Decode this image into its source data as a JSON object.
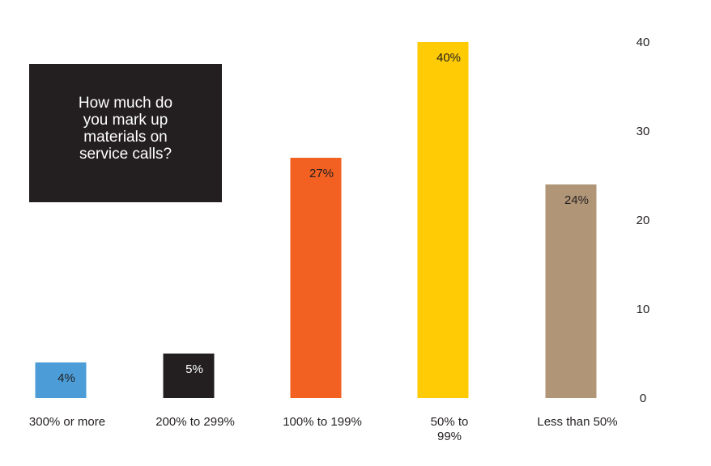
{
  "chart_data": {
    "type": "bar",
    "title": "How much do you mark up materials on service calls?",
    "categories": [
      [
        "300% or more"
      ],
      [
        "200% to 299%"
      ],
      [
        "100% to 199%"
      ],
      [
        "50% to",
        "99%"
      ],
      [
        "Less than 50%"
      ]
    ],
    "values": [
      4,
      5,
      27,
      40,
      24
    ],
    "value_labels": [
      "4%",
      "5%",
      "27%",
      "40%",
      "24%"
    ],
    "colors": [
      "#4c9dd7",
      "#231f20",
      "#f26022",
      "#ffcb05",
      "#b09577"
    ],
    "label_colors": [
      "#231f20",
      "#ffffff",
      "#231f20",
      "#231f20",
      "#231f20"
    ],
    "y_ticks": [
      0,
      10,
      20,
      30,
      40
    ],
    "ylim": [
      0,
      40
    ],
    "y_axis_side": "right",
    "grid": false,
    "legend": "none"
  }
}
